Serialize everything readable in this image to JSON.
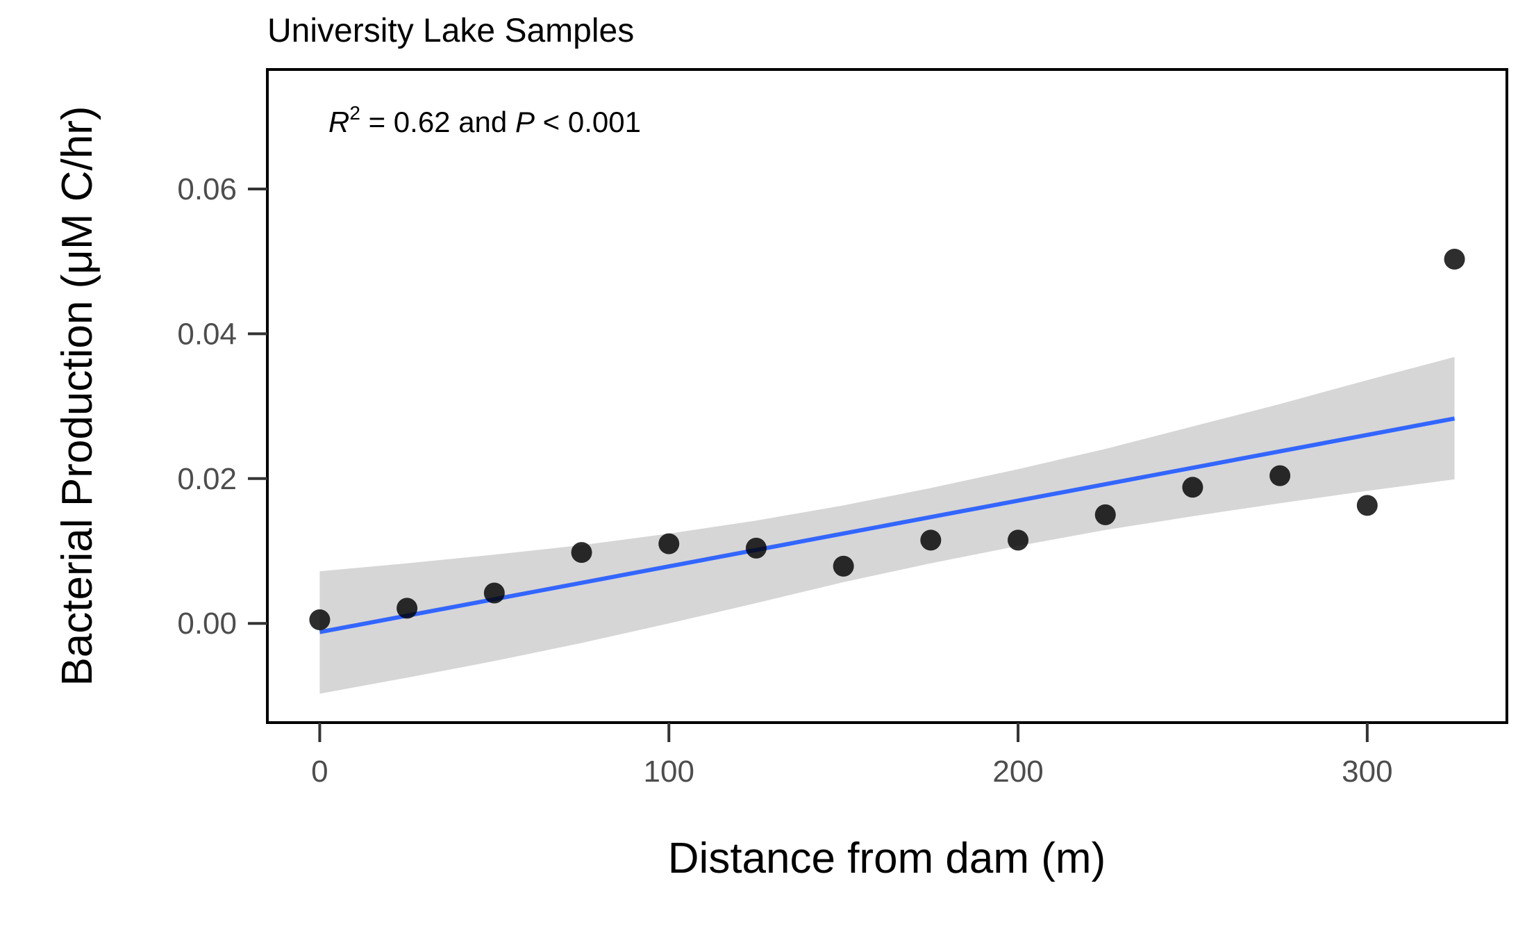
{
  "chart_data": {
    "type": "scatter",
    "title": "University Lake Samples",
    "xlabel": "Distance from dam (m)",
    "ylabel": "Bacterial Production (μM C/hr)",
    "xlim": [
      -15,
      340
    ],
    "ylim": [
      -0.0137,
      0.0765
    ],
    "x_ticks": [
      0,
      100,
      200,
      300
    ],
    "x_tick_labels": [
      "0",
      "100",
      "200",
      "300"
    ],
    "y_ticks": [
      0,
      0.02,
      0.04,
      0.06
    ],
    "y_tick_labels": [
      "0.00",
      "0.02",
      "0.04",
      "0.06"
    ],
    "grid": false,
    "annotation": {
      "r_symbol": "R",
      "r_exponent": "2",
      "r_value_text": " = 0.62 and ",
      "p_symbol": "P",
      "p_value_text": " < 0.001"
    },
    "series": [
      {
        "type": "scatter",
        "color": "#000000",
        "x": [
          0,
          25,
          50,
          75,
          100,
          125,
          150,
          175,
          200,
          225,
          250,
          275,
          300,
          325
        ],
        "y": [
          0.0005,
          0.0021,
          0.0042,
          0.0098,
          0.011,
          0.0104,
          0.0079,
          0.0115,
          0.0115,
          0.015,
          0.0188,
          0.0204,
          0.0163,
          0.0503
        ]
      },
      {
        "type": "fit-line",
        "color": "#3366ff",
        "x": [
          0,
          325
        ],
        "y": [
          -0.0012,
          0.0283
        ]
      },
      {
        "type": "confidence-band",
        "color": "#d6d6d6",
        "x": [
          0,
          25,
          50,
          75,
          100,
          125,
          150,
          175,
          200,
          225,
          250,
          275,
          300,
          325
        ],
        "lower": [
          -0.0097,
          -0.0075,
          -0.0052,
          -0.0027,
          0.0,
          0.0028,
          0.0057,
          0.0083,
          0.0107,
          0.0129,
          0.0148,
          0.0166,
          0.0183,
          0.0199
        ],
        "upper": [
          0.0072,
          0.0083,
          0.0095,
          0.0108,
          0.0124,
          0.0142,
          0.0163,
          0.0187,
          0.0213,
          0.0241,
          0.0272,
          0.0303,
          0.0336,
          0.0368
        ]
      }
    ]
  }
}
